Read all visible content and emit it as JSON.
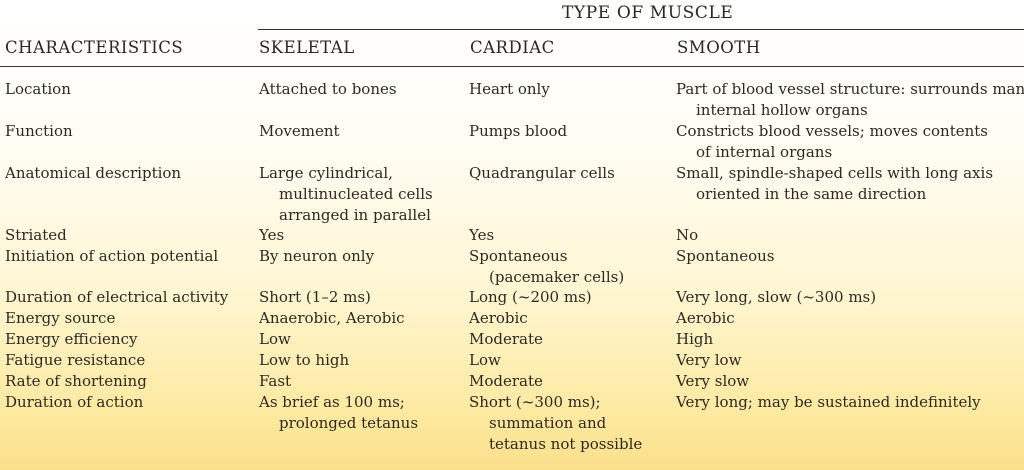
{
  "table": {
    "group_title": "TYPE OF MUSCLE",
    "headers": [
      "CHARACTERISTICS",
      "SKELETAL",
      "CARDIAC",
      "SMOOTH"
    ],
    "rows": [
      [
        "Location",
        "Attached to bones",
        "Heart only",
        "Part of blood vessel structure: surrounds many\ninternal hollow organs"
      ],
      [
        "Function",
        "Movement",
        "Pumps blood",
        "Constricts blood vessels; moves contents\nof internal organs"
      ],
      [
        "Anatomical description",
        "Large cylindrical,\nmultinucleated cells\narranged in parallel",
        "Quadrangular cells",
        "Small, spindle-shaped cells with long axis\noriented in the same direction"
      ],
      [
        "Striated",
        "Yes",
        "Yes",
        "No"
      ],
      [
        "Initiation of action potential",
        "By neuron only",
        "Spontaneous\n(pacemaker cells)",
        "Spontaneous"
      ],
      [
        "Duration of electrical activity",
        "Short (1–2 ms)",
        "Long (~200 ms)",
        "Very long, slow (~300 ms)"
      ],
      [
        "Energy source",
        "Anaerobic, Aerobic",
        "Aerobic",
        "Aerobic"
      ],
      [
        "Energy efficiency",
        "Low",
        "Moderate",
        "High"
      ],
      [
        "Fatigue resistance",
        "Low to high",
        "Low",
        "Very low"
      ],
      [
        "Rate of shortening",
        "Fast",
        "Moderate",
        "Very slow"
      ],
      [
        "Duration of action",
        "As brief as 100 ms;\nprolonged tetanus",
        "Short (~300 ms);\nsummation and\ntetanus not possible",
        "Very long; may be sustained indefinitely"
      ]
    ]
  }
}
